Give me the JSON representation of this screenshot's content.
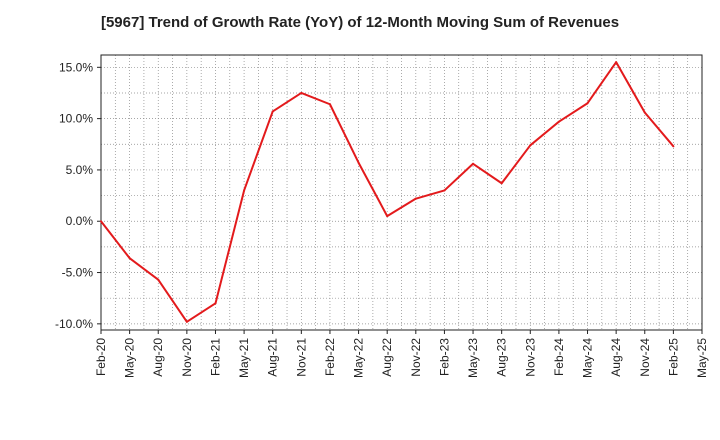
{
  "chart_data": {
    "type": "line",
    "title": "[5967]  Trend of Growth Rate (YoY) of 12-Month Moving Sum of Revenues",
    "xlabel": "",
    "ylabel": "",
    "x": [
      "Feb-20",
      "May-20",
      "Aug-20",
      "Nov-20",
      "Feb-21",
      "May-21",
      "Aug-21",
      "Nov-21",
      "Feb-22",
      "May-22",
      "Aug-22",
      "Nov-22",
      "Feb-23",
      "May-23",
      "Aug-23",
      "Nov-23",
      "Feb-24",
      "May-24",
      "Aug-24",
      "Nov-24",
      "Feb-25",
      "May-25"
    ],
    "y_ticks": [
      -10,
      -5,
      0,
      5,
      10,
      15
    ],
    "y_tick_labels": [
      "-10.0%",
      "-5.0%",
      "0.0%",
      "5.0%",
      "10.0%",
      "15.0%"
    ],
    "ylim": [
      -10.6,
      16.2
    ],
    "grid": true,
    "series": [
      {
        "color": "#e31a1c",
        "values": [
          0.0,
          -3.6,
          -5.7,
          -9.8,
          -8.0,
          3.0,
          10.7,
          12.5,
          11.4,
          5.7,
          0.5,
          2.2,
          3.0,
          5.6,
          3.7,
          7.4,
          9.7,
          11.5,
          15.5,
          10.6,
          7.3,
          null
        ]
      }
    ],
    "colors": {
      "axis": "#222222",
      "grid": "#888888",
      "series": "#e31a1c"
    }
  }
}
